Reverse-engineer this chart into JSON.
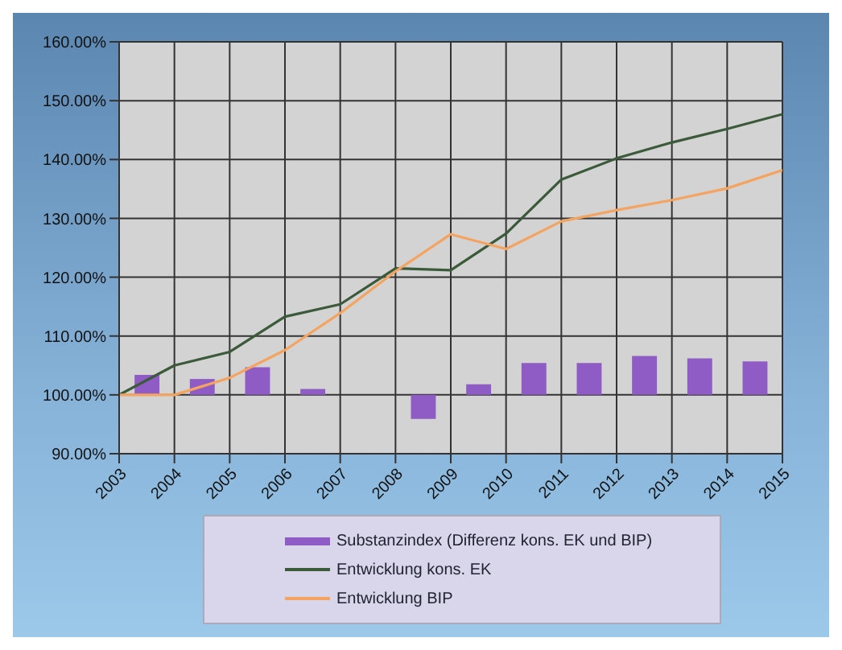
{
  "chart_data": {
    "type": "line",
    "x": [
      2003,
      2004,
      2005,
      2006,
      2007,
      2008,
      2009,
      2010,
      2011,
      2012,
      2013,
      2014,
      2015
    ],
    "series": [
      {
        "type": "bar",
        "name": "Substanzindex (Differenz kons. EK und BIP)",
        "color": "#8e5cc4",
        "x": [
          2003.5,
          2004.5,
          2005.5,
          2006.5,
          2007.5,
          2008.5,
          2009.5,
          2010.5,
          2011.5,
          2012.5,
          2013.5,
          2014.5
        ],
        "base": [
          100,
          100,
          100,
          100,
          null,
          100,
          100,
          100,
          100,
          100,
          100,
          100
        ],
        "values": [
          3.4,
          2.7,
          4.7,
          1.0,
          null,
          -4.1,
          1.8,
          5.4,
          5.4,
          6.6,
          6.2,
          5.7
        ]
      },
      {
        "name": "Entwicklung kons. EK",
        "color": "#3a5a3a",
        "values": [
          100,
          105,
          107.3,
          113.3,
          115.4,
          121.5,
          121.2,
          127.4,
          136.6,
          140.2,
          142.9,
          145.2,
          147.7
        ]
      },
      {
        "name": "Entwicklung BIP",
        "color": "#f4a460",
        "values": [
          100,
          100,
          102.9,
          107.6,
          113.9,
          121,
          127.3,
          124.8,
          129.5,
          131.4,
          133.1,
          135.1,
          138.2
        ]
      }
    ],
    "xlim": [
      2003,
      2015
    ],
    "xticks": [
      2003,
      2004,
      2005,
      2006,
      2007,
      2008,
      2009,
      2010,
      2011,
      2012,
      2013,
      2014,
      2015
    ],
    "ylim": [
      90,
      160
    ],
    "yticks": [
      {
        "value": 90,
        "label": "90.00%"
      },
      {
        "value": 100,
        "label": "100.00%"
      },
      {
        "value": 110,
        "label": "110.00%"
      },
      {
        "value": 120,
        "label": "120.00%"
      },
      {
        "value": 130,
        "label": "130.00%"
      },
      {
        "value": 140,
        "label": "140.00%"
      },
      {
        "value": 150,
        "label": "150.00%"
      },
      {
        "value": 160,
        "label": "160.00%"
      }
    ],
    "grid": true,
    "legend": "bottom",
    "marker": "none",
    "line_style": "solid"
  }
}
